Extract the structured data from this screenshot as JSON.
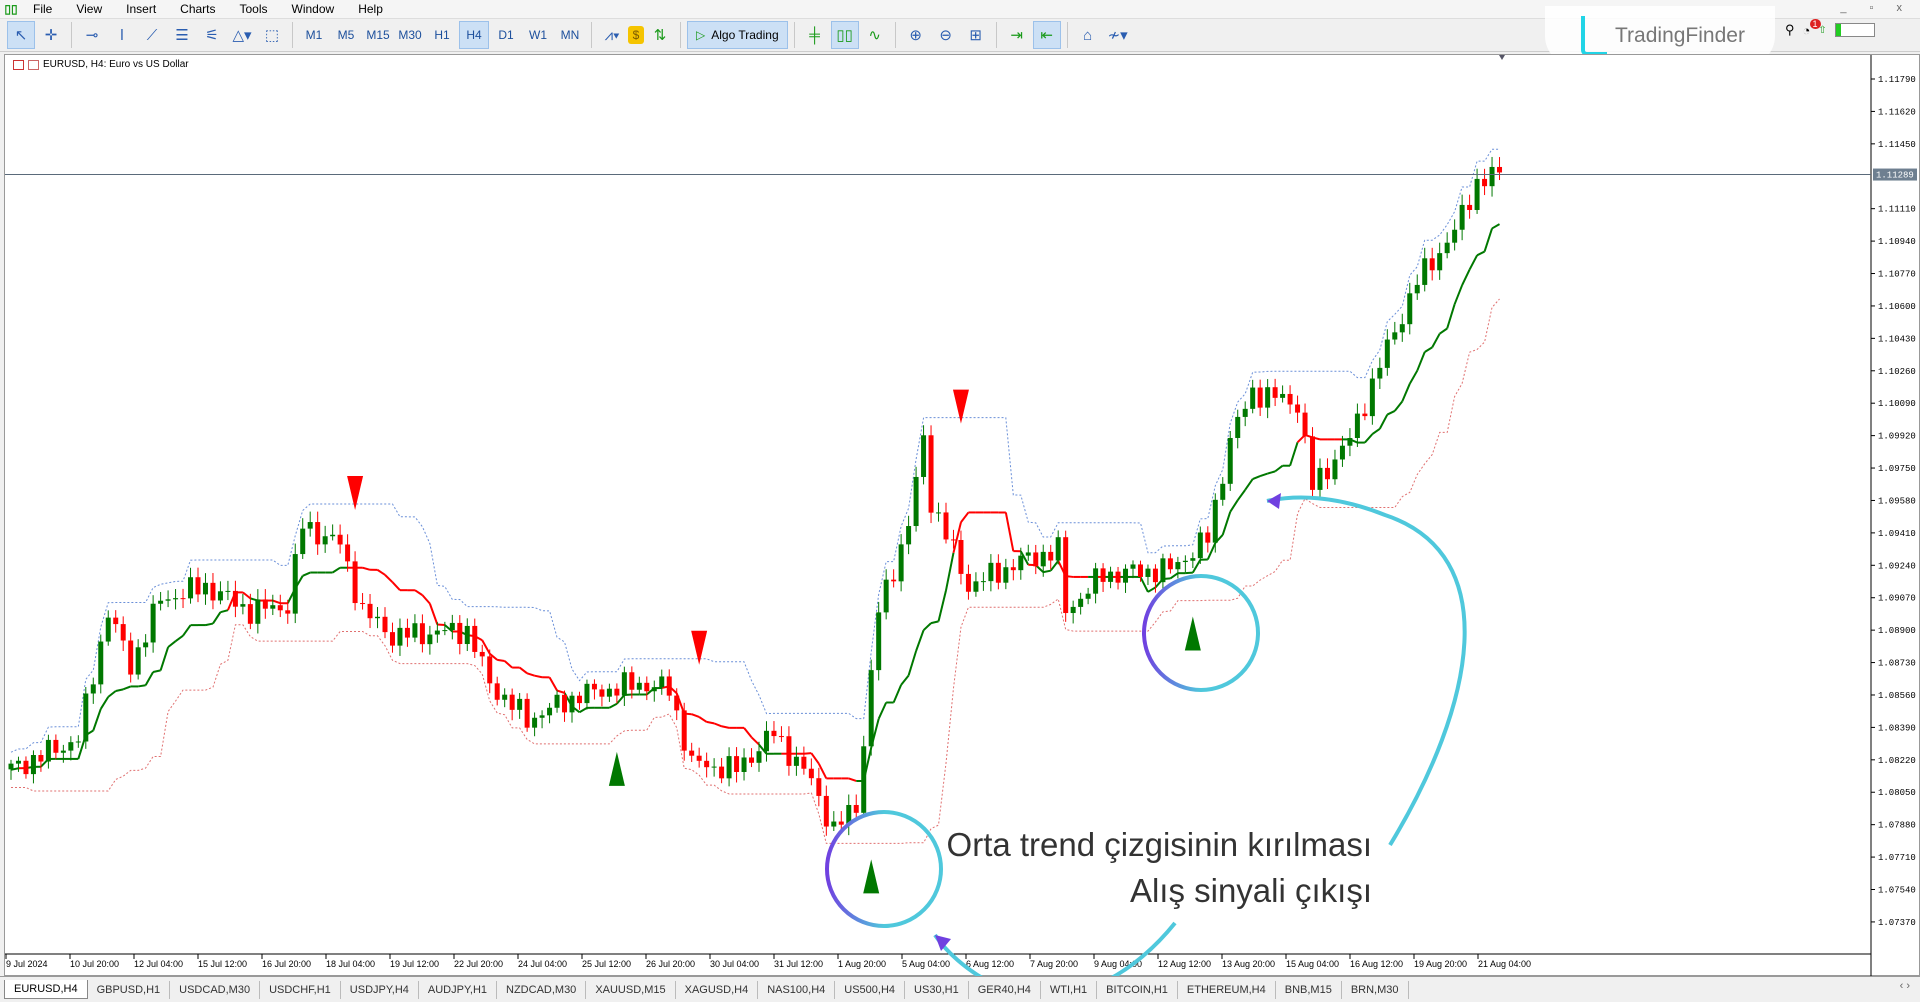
{
  "menu": [
    "File",
    "View",
    "Insert",
    "Charts",
    "Tools",
    "Window",
    "Help"
  ],
  "toolbar": {
    "tools": [
      {
        "icon": "cursor-icon",
        "glyph": "↖",
        "active": true
      },
      {
        "icon": "crosshair-icon",
        "glyph": "✛"
      },
      {
        "icon": "horizontal-line-icon",
        "glyph": "⊸"
      },
      {
        "icon": "vertical-line-icon",
        "glyph": "ǀ"
      },
      {
        "icon": "trendline-icon",
        "glyph": "⟋"
      },
      {
        "icon": "channel-icon",
        "glyph": "☰"
      },
      {
        "icon": "fibonacci-icon",
        "glyph": "⚟"
      },
      {
        "icon": "shapes-icon",
        "glyph": "△▾"
      },
      {
        "icon": "object-frame-icon",
        "glyph": "⬚"
      }
    ],
    "timeframes": [
      "M1",
      "M5",
      "M15",
      "M30",
      "H1",
      "H4",
      "D1",
      "W1",
      "MN"
    ],
    "active_timeframe": "H4",
    "algo_label": "Algo Trading",
    "right_tools": [
      {
        "icon": "bar-chart-icon",
        "glyph": "╪"
      },
      {
        "icon": "candlestick-icon",
        "glyph": "▯▯",
        "active": true
      },
      {
        "icon": "line-chart-icon",
        "glyph": "∿"
      },
      {
        "icon": "zoom-in-icon",
        "glyph": "⊕"
      },
      {
        "icon": "zoom-out-icon",
        "glyph": "⊖"
      },
      {
        "icon": "tile-windows-icon",
        "glyph": "⊞"
      },
      {
        "icon": "scroll-end-icon",
        "glyph": "⇥"
      },
      {
        "icon": "chart-shift-icon",
        "glyph": "⇤",
        "active": true
      },
      {
        "icon": "screenshot-icon",
        "glyph": "⌂"
      },
      {
        "icon": "indicators-icon",
        "glyph": "≁▾"
      }
    ]
  },
  "brand": "TradingFinder",
  "notification_count": "1",
  "chart": {
    "title": "EURUSD, H4:  Euro vs US Dollar",
    "current_price": "1.11289",
    "price_labels": [
      "1.11790",
      "1.11620",
      "1.11450",
      "1.11110",
      "1.10940",
      "1.10770",
      "1.10600",
      "1.10430",
      "1.10260",
      "1.10090",
      "1.09920",
      "1.09750",
      "1.09580",
      "1.09410",
      "1.09240",
      "1.09070",
      "1.08900",
      "1.08730",
      "1.08560",
      "1.08390",
      "1.08220",
      "1.08050",
      "1.07880",
      "1.07710",
      "1.07540",
      "1.07370"
    ],
    "time_labels": [
      "9 Jul 2024",
      "10 Jul 20:00",
      "12 Jul 04:00",
      "15 Jul 12:00",
      "16 Jul 20:00",
      "18 Jul 04:00",
      "19 Jul 12:00",
      "22 Jul 20:00",
      "24 Jul 04:00",
      "25 Jul 12:00",
      "26 Jul 20:00",
      "30 Jul 04:00",
      "31 Jul 12:00",
      "1 Aug 20:00",
      "5 Aug 04:00",
      "6 Aug 12:00",
      "7 Aug 20:00",
      "9 Aug 04:00",
      "12 Aug 12:00",
      "13 Aug 20:00",
      "15 Aug 04:00",
      "16 Aug 12:00",
      "19 Aug 20:00",
      "21 Aug 04:00"
    ],
    "colors": {
      "bull": "#007800",
      "bear": "#ff0000",
      "upper_band": "#6a8fd8",
      "lower_band": "#e07070",
      "annotation_circle": "#4fc8dc",
      "annotation_arrow": "#7040e0"
    }
  },
  "chart_data": {
    "type": "candlestick",
    "symbol": "EURUSD",
    "timeframe": "H4",
    "ylim": [
      1.0728,
      1.1188
    ],
    "key_closes": [
      [
        0,
        1.0817
      ],
      [
        9,
        1.0833
      ],
      [
        13,
        1.09
      ],
      [
        16,
        1.0871
      ],
      [
        20,
        1.0906
      ],
      [
        26,
        1.0913
      ],
      [
        32,
        1.09
      ],
      [
        37,
        1.0903
      ],
      [
        39,
        1.0945
      ],
      [
        44,
        1.0935
      ],
      [
        47,
        1.09
      ],
      [
        51,
        1.0887
      ],
      [
        61,
        1.089
      ],
      [
        64,
        1.0862
      ],
      [
        69,
        1.0843
      ],
      [
        76,
        1.0856
      ],
      [
        84,
        1.0862
      ],
      [
        88,
        1.0859
      ],
      [
        91,
        1.082
      ],
      [
        97,
        1.0817
      ],
      [
        102,
        1.0836
      ],
      [
        107,
        1.0811
      ],
      [
        110,
        1.0785
      ],
      [
        113,
        1.0798
      ],
      [
        116,
        1.09
      ],
      [
        120,
        1.0945
      ],
      [
        122,
        1.099
      ],
      [
        123,
        1.0958
      ],
      [
        128,
        1.0913
      ],
      [
        135,
        1.0926
      ],
      [
        140,
        1.0932
      ],
      [
        141,
        1.09
      ],
      [
        146,
        1.0919
      ],
      [
        155,
        1.0922
      ],
      [
        160,
        1.0938
      ],
      [
        163,
        1.099
      ],
      [
        166,
        1.1015
      ],
      [
        172,
        1.1009
      ],
      [
        174,
        1.0965
      ],
      [
        179,
        1.099
      ],
      [
        183,
        1.1029
      ],
      [
        188,
        1.1073
      ],
      [
        193,
        1.1099
      ],
      [
        196,
        1.1125
      ],
      [
        199,
        1.1129
      ]
    ],
    "sell_signals": [
      46,
      92,
      127
    ],
    "buy_signals": [
      81,
      115,
      158
    ]
  },
  "annotation": {
    "line1": "Orta trend çizgisinin kırılması",
    "line2": "Alış sinyali çıkışı"
  },
  "tabs": [
    "EURUSD,H4",
    "GBPUSD,H1",
    "USDCAD,M30",
    "USDCHF,H1",
    "USDJPY,H4",
    "AUDJPY,H1",
    "NZDCAD,M30",
    "XAUUSD,M15",
    "XAGUSD,H4",
    "NAS100,H4",
    "US500,H4",
    "US30,H1",
    "GER40,H4",
    "WTI,H1",
    "BITCOIN,H1",
    "ETHEREUM,H4",
    "BNB,M15",
    "BRN,M30"
  ],
  "active_tab": "EURUSD,H4"
}
